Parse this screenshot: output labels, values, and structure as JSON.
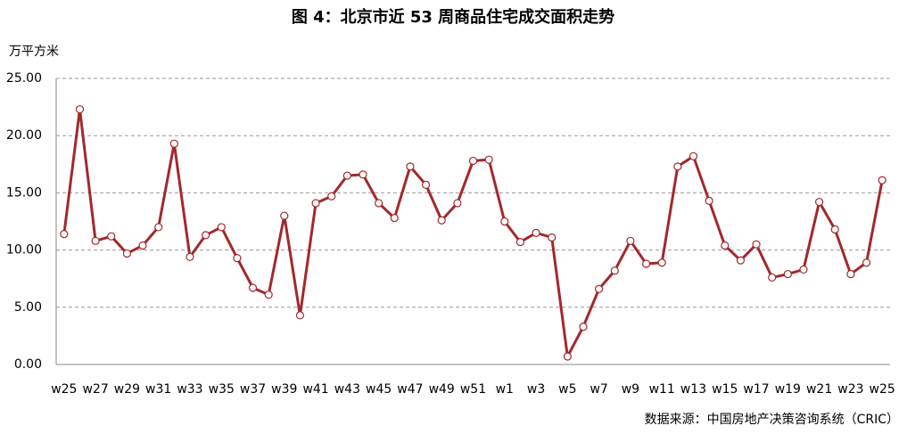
{
  "chart_data": {
    "type": "line",
    "title": "图 4：北京市近 53 周商品住宅成交面积走势",
    "y_label": "万平方米",
    "source": "数据来源：中国房地产决策咨询系统（CRIC）",
    "categories": [
      "w25",
      null,
      "w27",
      null,
      "w29",
      null,
      "w31",
      null,
      "w33",
      null,
      "w35",
      null,
      "w37",
      null,
      "w39",
      null,
      "w41",
      null,
      "w43",
      null,
      "w45",
      null,
      "w47",
      null,
      "w49",
      null,
      "w51",
      null,
      "w1",
      null,
      "w3",
      null,
      "w5",
      null,
      "w7",
      null,
      "w9",
      null,
      "w11",
      null,
      "w13",
      null,
      "w15",
      null,
      "w17",
      null,
      "w19",
      null,
      "w21",
      null,
      "w23",
      null,
      "w25"
    ],
    "values": [
      11.4,
      22.3,
      10.8,
      11.2,
      9.7,
      10.4,
      12.0,
      19.3,
      9.4,
      11.3,
      12.0,
      9.3,
      6.7,
      6.1,
      13.0,
      4.3,
      14.1,
      14.7,
      16.5,
      16.6,
      14.1,
      12.8,
      17.3,
      15.7,
      12.6,
      14.1,
      17.8,
      17.9,
      12.5,
      10.7,
      11.5,
      11.1,
      0.7,
      3.3,
      6.6,
      8.2,
      10.8,
      8.8,
      8.9,
      17.3,
      18.2,
      14.3,
      10.4,
      9.1,
      10.5,
      7.6,
      7.9,
      8.3,
      14.2,
      11.8,
      7.9,
      8.9,
      16.1
    ],
    "color": "#a3282b",
    "ylim": [
      0,
      25
    ],
    "yticks": [
      {
        "value": 0,
        "label": "0.00"
      },
      {
        "value": 5,
        "label": "5.00"
      },
      {
        "value": 10,
        "label": "10.00"
      },
      {
        "value": 15,
        "label": "15.00"
      },
      {
        "value": 20,
        "label": "20.00"
      },
      {
        "value": 25,
        "label": "25.00"
      }
    ],
    "grid": true
  }
}
